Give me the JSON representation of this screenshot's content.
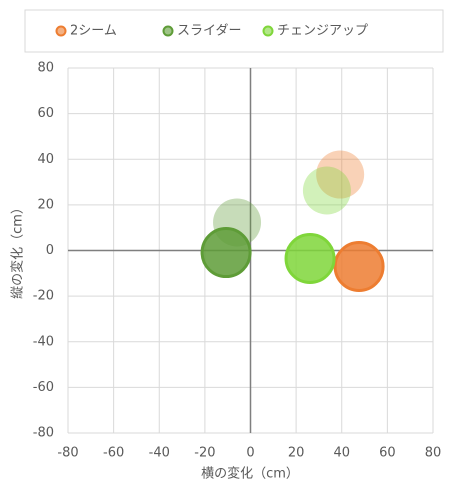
{
  "chart_data": {
    "type": "scatter",
    "xlabel": "横の変化（cm）",
    "ylabel": "縦の変化（cm）",
    "xlim": [
      -80,
      80
    ],
    "xticks": [
      -80,
      -60,
      -40,
      -20,
      0,
      20,
      40,
      60,
      80
    ],
    "ylim": [
      -80,
      80
    ],
    "yticks": [
      -80,
      -60,
      -40,
      -20,
      0,
      20,
      40,
      60,
      80
    ],
    "grid": true,
    "legend": "top",
    "series": [
      {
        "name": "2シーム",
        "color": "#ED7D31",
        "x": [
          39.3,
          47.6
        ],
        "values": [
          33.3,
          -7.0
        ],
        "alpha": [
          0.35,
          0.85
        ]
      },
      {
        "name": "スライダー",
        "color": "#5E9C37",
        "x": [
          -5.9,
          -10.7
        ],
        "values": [
          12.3,
          -0.9
        ],
        "alpha": [
          0.35,
          0.85
        ]
      },
      {
        "name": "チェンジアップ",
        "color": "#7FD63A",
        "x": [
          33.5,
          26.1
        ],
        "values": [
          26.3,
          -3.5
        ],
        "alpha": [
          0.35,
          0.85
        ]
      }
    ]
  }
}
